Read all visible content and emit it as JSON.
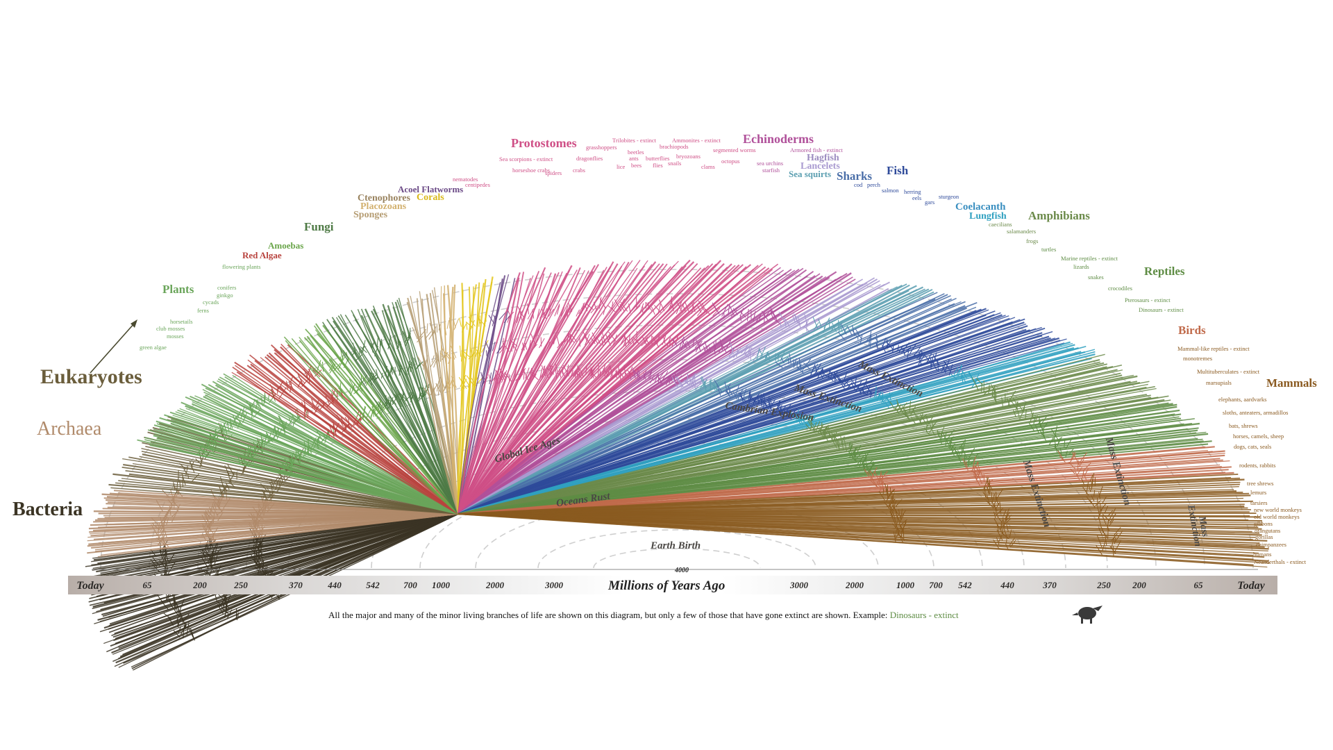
{
  "domains": {
    "bacteria": "Bacteria",
    "archaea": "Archaea",
    "eukaryotes": "Eukaryotes"
  },
  "groups": {
    "plants": "Plants",
    "red_algae": "Red Algae",
    "amoebas": "Amoebas",
    "fungi": "Fungi",
    "ctenophores": "Ctenophores",
    "placozoans": "Placozoans",
    "sponges": "Sponges",
    "acoel_flatworms": "Acoel Flatworms",
    "corals": "Corals",
    "protostomes": "Protostomes",
    "echinoderms": "Echinoderms",
    "hagfish": "Hagfish",
    "lancelets": "Lancelets",
    "sea_squirts": "Sea squirts",
    "sharks": "Sharks",
    "fish": "Fish",
    "coelacanth": "Coelacanth",
    "lungfish": "Lungfish",
    "amphibians": "Amphibians",
    "reptiles": "Reptiles",
    "birds": "Birds",
    "mammals": "Mammals"
  },
  "plant_taxa": [
    "flowering plants",
    "conifers",
    "ginkgo",
    "cycads",
    "ferns",
    "horsetails",
    "club mosses",
    "mosses",
    "green algae"
  ],
  "protostome_taxa": [
    "nematodes",
    "centipedes",
    "Sea scorpions - extinct",
    "horseshoe crabs",
    "spiders",
    "crabs",
    "grasshoppers",
    "dragonflies",
    "Trilobites - extinct",
    "beetles",
    "ants",
    "bees",
    "lice",
    "butterflies",
    "flies",
    "brachiopods",
    "bryozoans",
    "snails",
    "Ammonites - extinct",
    "segmented worms",
    "clams",
    "octopus"
  ],
  "echinoderm_taxa": [
    "Armored fish - extinct",
    "sea urchins",
    "starfish"
  ],
  "fish_taxa": [
    "cod",
    "perch",
    "salmon",
    "herring",
    "eels",
    "gars",
    "sturgeon"
  ],
  "amphibian_taxa": [
    "caecilians",
    "salamanders",
    "frogs"
  ],
  "reptile_taxa": [
    "turtles",
    "Marine reptiles - extinct",
    "lizards",
    "snakes",
    "crocodiles",
    "Pterosaurs - extinct",
    "Dinosaurs - extinct"
  ],
  "mammal_taxa": [
    "Mammal-like reptiles - extinct",
    "monotremes",
    "Multituberculates - extinct",
    "marsupials",
    "elephants, aardvarks",
    "sloths, anteaters, armadillos",
    "bats, shrews",
    "horses, camels, sheep",
    "dogs, cats, seals",
    "rodents, rabbits",
    "tree shrews",
    "lemurs",
    "tarsiers",
    "new world monkeys",
    "old world monkeys",
    "gibbons",
    "orangutans",
    "gorillas",
    "chimpanzees",
    "humans",
    "Neanderthals - extinct"
  ],
  "events": {
    "global_ice_ages": "Global Ice Ages",
    "oceans_rust": "Oceans Rust",
    "earth_birth": "Earth Birth",
    "cambrian_explosion": "Cambrian Explosion",
    "mass_extinction": "Mass Extinction",
    "mass": "Mass",
    "extinction": "Extinction"
  },
  "axis": {
    "title": "Millions of Years Ago",
    "center": "4000",
    "left_ticks": [
      "Today",
      "65",
      "200",
      "250",
      "370",
      "440",
      "542",
      "700",
      "1000",
      "2000",
      "3000"
    ],
    "right_ticks": [
      "3000",
      "2000",
      "1000",
      "700",
      "542",
      "440",
      "370",
      "250",
      "200",
      "65",
      "Today"
    ]
  },
  "caption": {
    "text": "All the major and many of the minor living branches of life are shown on this diagram, but only a few of those that have gone extinct are shown. Example: ",
    "example": "Dinosaurs - extinct"
  },
  "colors": {
    "bacteria": "#3b3424",
    "archaea": "#b08a6a",
    "eukaryotes": "#6b5e3c",
    "plants": "#6aa55a",
    "red_algae": "#b8433e",
    "amoebas": "#6aa54a",
    "fungi": "#4e7a45",
    "ctenophores": "#b59c72",
    "placozoans": "#d2b06e",
    "sponges": "#b59c72",
    "acoel_flatworms": "#6b4a86",
    "corals": "#e3c51c",
    "protostomes": "#cf4f86",
    "echinoderms": "#b0509a",
    "hagfish": "#9c8cc0",
    "lancelets": "#a99ad0",
    "sea_squirts": "#5a9eb0",
    "sharks": "#4a6ea8",
    "fish": "#2e4a9a",
    "coelacanth": "#3a8fc0",
    "lungfish": "#2fa0c0",
    "amphibians": "#6b8a4a",
    "reptiles": "#5e8c44",
    "birds": "#c06a4a",
    "mammals": "#8a5a20"
  }
}
